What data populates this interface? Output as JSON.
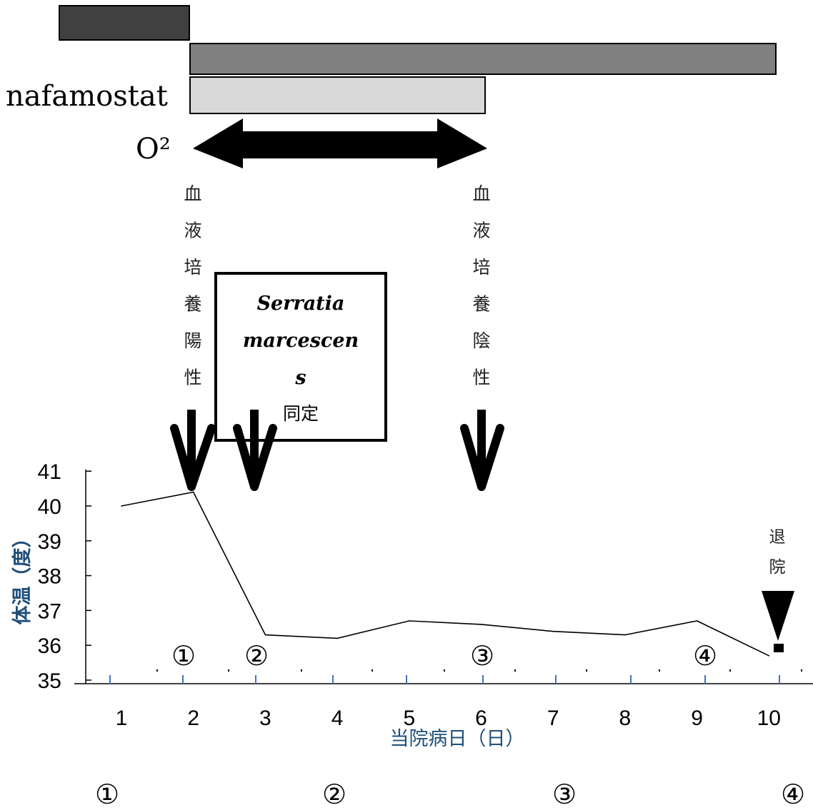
{
  "timeline": {
    "drug_label": "nafamostat",
    "oxygen_label": "O²",
    "culture_positive": [
      "血",
      "液",
      "培",
      "養",
      "陽",
      "性"
    ],
    "culture_negative": [
      "血",
      "液",
      "培",
      "養",
      "陰",
      "性"
    ],
    "organism_box": {
      "line1": "Serratia",
      "line2": "marcescen",
      "line3": "s",
      "line4": "同定"
    },
    "discharge": [
      "退",
      "院"
    ],
    "bar_colors": [
      "#404040",
      "#808080",
      "#d9d9d9"
    ]
  },
  "chart_data": {
    "type": "line",
    "ylabel": "体温（度）",
    "xlabel": "当院病日（日）",
    "x": [
      1,
      2,
      3,
      4,
      5,
      6,
      7,
      8,
      9,
      10
    ],
    "y": [
      40.0,
      40.4,
      36.3,
      36.2,
      36.7,
      36.6,
      36.4,
      36.3,
      36.7,
      35.7
    ],
    "ylim": [
      35,
      41
    ],
    "yticks": [
      "35",
      "36",
      "37",
      "38",
      "39",
      "40",
      "41"
    ],
    "xticks": [
      "1",
      "2",
      "3",
      "4",
      "5",
      "6",
      "7",
      "8",
      "9",
      "10"
    ],
    "markers_on_axis": [
      "①",
      "②",
      "③",
      "④"
    ],
    "markers_bottom": [
      "①",
      "②",
      "③",
      "④"
    ]
  }
}
